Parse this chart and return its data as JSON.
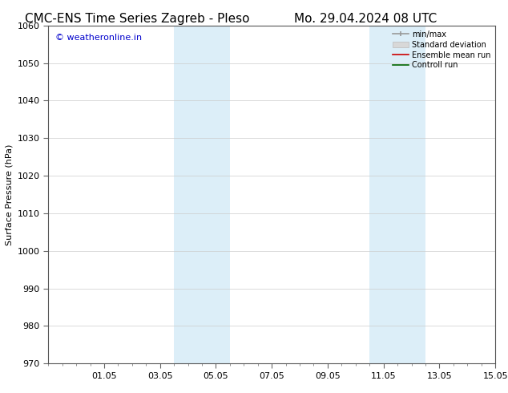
{
  "title_left": "CMC-ENS Time Series Zagreb - Pleso",
  "title_right": "Mo. 29.04.2024 08 UTC",
  "ylabel": "Surface Pressure (hPa)",
  "ylim": [
    970,
    1060
  ],
  "yticks": [
    970,
    980,
    990,
    1000,
    1010,
    1020,
    1030,
    1040,
    1050,
    1060
  ],
  "xtick_labels": [
    "01.05",
    "03.05",
    "05.05",
    "07.05",
    "09.05",
    "11.05",
    "13.05",
    "15.05"
  ],
  "xtick_positions": [
    2,
    4,
    6,
    8,
    10,
    12,
    14,
    16
  ],
  "xlim": [
    0,
    16
  ],
  "shaded_bands": [
    {
      "x_start": 4.5,
      "x_end": 6.5
    },
    {
      "x_start": 11.5,
      "x_end": 13.5
    }
  ],
  "shaded_color": "#dceef8",
  "legend_entries": [
    {
      "label": "min/max",
      "color": "#aaaaaa"
    },
    {
      "label": "Standard deviation",
      "color": "#cccccc"
    },
    {
      "label": "Ensemble mean run",
      "color": "#ff0000"
    },
    {
      "label": "Controll run",
      "color": "#008000"
    }
  ],
  "watermark_text": "© weatheronline.in",
  "watermark_color": "#0000cc",
  "watermark_fontsize": 8,
  "bg_color": "#ffffff",
  "grid_color": "#cccccc",
  "title_fontsize": 11,
  "axis_fontsize": 8,
  "ylabel_fontsize": 8,
  "legend_fontsize": 7
}
